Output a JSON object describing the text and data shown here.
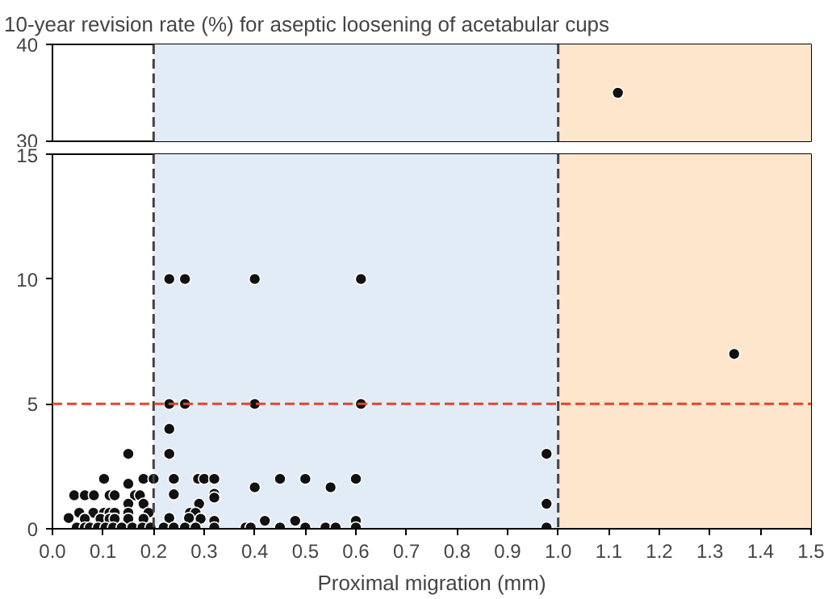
{
  "chart_data": [
    {
      "type": "scatter",
      "title": "10-year revision rate (%) for aseptic loosening of acetabular cups",
      "marker": "circle",
      "tick_labels": "y",
      "x": [
        1.118
      ],
      "values": [
        35
      ],
      "color": "#111111",
      "xlim": [
        0,
        1.5
      ],
      "ylim": [
        30,
        40
      ],
      "yticks": [
        30,
        40
      ],
      "bands": [
        {
          "axis": "x",
          "from": 0.2,
          "to": 1.0,
          "color": "#e1ecf6"
        },
        {
          "axis": "x",
          "from": 1.0,
          "to": 1.5,
          "color": "#fde6cc"
        }
      ],
      "ref_lines": [
        {
          "axis": "x",
          "value": 0.2,
          "color": "#444444",
          "line_style": "dashed"
        },
        {
          "axis": "x",
          "value": 1.0,
          "color": "#444444",
          "line_style": "dashed"
        }
      ]
    },
    {
      "type": "scatter",
      "xlabel": "Proximal migration (mm)",
      "marker": "circle",
      "color": "#111111",
      "x": [
        0.231,
        0.262,
        0.4,
        0.61,
        0.231,
        0.262,
        0.4,
        0.61,
        1.348,
        0.231,
        0.231,
        0.15,
        0.977,
        0.102,
        0.18,
        0.2,
        0.24,
        0.288,
        0.3,
        0.32,
        0.45,
        0.5,
        0.6,
        0.043,
        0.064,
        0.082,
        0.113,
        0.123,
        0.163,
        0.173,
        0.24,
        0.32,
        0.32,
        0.15,
        0.4,
        0.55,
        0.15,
        0.18,
        0.29,
        0.977,
        0.053,
        0.081,
        0.102,
        0.113,
        0.123,
        0.15,
        0.19,
        0.272,
        0.283,
        0.032,
        0.064,
        0.095,
        0.113,
        0.123,
        0.15,
        0.18,
        0.231,
        0.27,
        0.293,
        0.32,
        0.42,
        0.48,
        0.6,
        0.048,
        0.064,
        0.074,
        0.09,
        0.105,
        0.12,
        0.137,
        0.158,
        0.178,
        0.194,
        0.22,
        0.24,
        0.262,
        0.283,
        0.32,
        0.382,
        0.392,
        0.45,
        0.5,
        0.54,
        0.56,
        0.6,
        0.977
      ],
      "values": [
        5,
        5,
        5,
        5,
        10,
        10,
        10,
        10,
        7,
        4,
        3,
        3,
        3,
        2,
        2,
        2,
        2,
        2,
        2,
        2,
        2,
        2,
        2,
        1.34,
        1.34,
        1.34,
        1.34,
        1.34,
        1.34,
        1.34,
        1.38,
        1.4,
        1.25,
        1.8,
        1.66,
        1.66,
        1,
        1,
        1,
        1,
        0.64,
        0.64,
        0.64,
        0.64,
        0.64,
        0.64,
        0.64,
        0.64,
        0.64,
        0.43,
        0.4,
        0.4,
        0.4,
        0.4,
        0.4,
        0.4,
        0.43,
        0.43,
        0.4,
        0.32,
        0.32,
        0.32,
        0.32,
        0.05,
        0.05,
        0.05,
        0.05,
        0.05,
        0.05,
        0.05,
        0.05,
        0.05,
        0.05,
        0.05,
        0.05,
        0.05,
        0.05,
        0.05,
        0.05,
        0.05,
        0.05,
        0.05,
        0.05,
        0.05,
        0.05,
        0.05
      ],
      "xlim": [
        0,
        1.5
      ],
      "xticks": [
        {
          "value": 0,
          "label": "0.0"
        },
        0.1,
        0.2,
        0.3,
        0.4,
        0.5,
        0.6,
        0.7,
        0.8,
        0.9,
        {
          "value": 1,
          "label": "1.0"
        },
        1.1,
        1.2,
        1.3,
        1.4,
        1.5
      ],
      "ylim": [
        0,
        15
      ],
      "yticks": [
        0,
        5,
        10,
        15
      ],
      "bands": [
        {
          "axis": "x",
          "from": 0.2,
          "to": 1.0,
          "color": "#e1ecf6"
        },
        {
          "axis": "x",
          "from": 1.0,
          "to": 1.5,
          "color": "#fde6cc"
        }
      ],
      "ref_lines": [
        {
          "axis": "x",
          "value": 0.2,
          "color": "#444444",
          "line_style": "dashed"
        },
        {
          "axis": "x",
          "value": 1.0,
          "color": "#444444",
          "line_style": "dashed"
        },
        {
          "axis": "y",
          "value": 5,
          "color": "#e8432d",
          "line_style": "dashed"
        }
      ]
    }
  ]
}
